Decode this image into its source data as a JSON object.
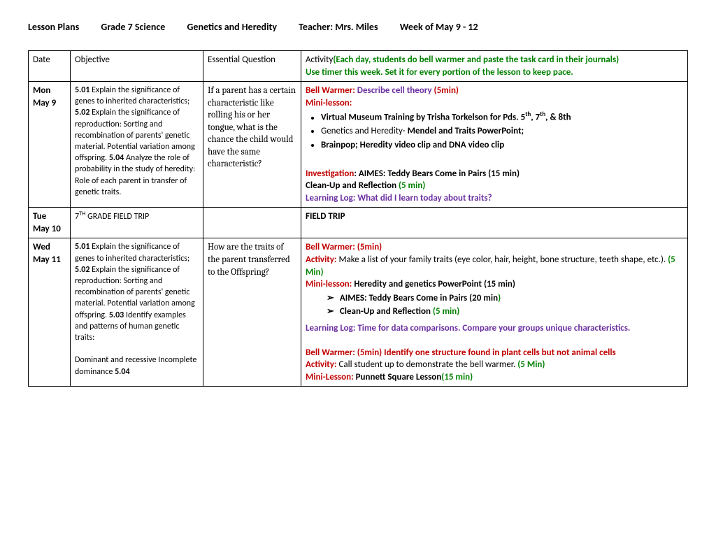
{
  "header": {
    "title": "Lesson Plans",
    "grade": "Grade 7 Science",
    "unit": "Genetics and Heredity",
    "teacher_label": "Teacher:  Mrs. Miles",
    "week": "Week of May 9 - 12"
  },
  "columns": {
    "date": "Date",
    "objective": "Objective",
    "eq": "Essential Question",
    "activity_label": "Activity",
    "activity_note1": "(Each day, students do bell warmer and paste the task card in their journals)",
    "activity_note2": "Use timer this week. Set it for every portion of the lesson to keep pace."
  },
  "mon": {
    "date1": "Mon",
    "date2": "May 9",
    "obj_501": "5.01",
    "obj_501_txt": " Explain the significance of genes to inherited characteristics; ",
    "obj_502": "5.02",
    "obj_502_txt": " Explain the significance of reproduction: Sorting and recombination of parents' genetic material. Potential variation among offspring. ",
    "obj_504": "5.04",
    "obj_504_txt": " Analyze the role of probability in the study of heredity: Role of each parent in transfer of genetic traits.",
    "eq": "If a parent has a certain characteristic like rolling his or her tongue, what is the chance the child would have the same characteristic?",
    "bw_label": "Bell Warmer:  ",
    "bw_txt": "Describe cell theory ",
    "bw_time": "(5min)",
    "ml_label": "Mini-lesson:",
    "b1a": "Virtual Museum Training by Trisha Torkelson for Pds. 5",
    "b1b": ", 7",
    "b1c": ", & 8th",
    "b2": "Genetics and Heredity- ",
    "b2b": "Mendel and Traits PowerPoint;",
    "b3": "Brainpop; Heredity video clip and DNA video clip",
    "inv_label": "Investigation",
    "inv_txt": ":  AIMES: Teddy Bears Come in Pairs (15 min)",
    "cleanup": " Clean-Up and Reflection ",
    "cleanup_time": "(5 min)",
    "ll_label": "Learning Log:  ",
    "ll_txt": "What did I learn today about traits?"
  },
  "tue": {
    "date1": "Tue",
    "date2": "May 10",
    "obj": "7TH GRADE FIELD TRIP",
    "act": "FIELD TRIP"
  },
  "wed": {
    "date1": "Wed",
    "date2": "May 11",
    "obj_501": "5.01",
    "obj_501_txt": " Explain the significance of genes to inherited characteristics; ",
    "obj_502": "5.02",
    "obj_502_txt": " Explain the significance of reproduction: Sorting and recombination of parents' genetic material. Potential variation among offspring. ",
    "obj_503": "5.03",
    "obj_503_txt": "  Identify examples and patterns of human genetic traits:",
    "obj_dom": "Dominant and recessive Incomplete dominance ",
    "obj_504": "5.04",
    "eq": "How are the traits of the parent transferred to the Offspring?",
    "bw1_label": "Bell Warmer:  ",
    "bw1_time": "(5min)",
    "act_label": "Activity:  ",
    "act_txt": "Make a list of your family traits (eye color, hair, height, bone structure, teeth shape, etc.). ",
    "act_time": "(5 Min)",
    "ml_label": "Mini-lesson: ",
    "ml_txt": "Heredity and genetics PowerPoint (15 min)",
    "a1": "AIMES: Teddy Bears Come in Pairs (20 min",
    "a1_paren": ")",
    "a2": "Clean-Up and Reflection ",
    "a2_time": "(5 min)",
    "ll_label": "Learning Log:  ",
    "ll_txt": "Time for data comparisons.  Compare your groups unique characteristics.",
    "bw2_label": "Bell Warmer:  ",
    "bw2_time": "(5min) ",
    "bw2_txt": "Identify one structure found in plant cells but not animal cells",
    "act2_label": "Activity:  ",
    "act2_txt": "Call student up to demonstrate the bell warmer. ",
    "act2_time": "(5 Min)",
    "ml2_label": "Mini-Lesson: ",
    "ml2_txt": "Punnett Square Lesson",
    "ml2_time": "(15 min)"
  }
}
